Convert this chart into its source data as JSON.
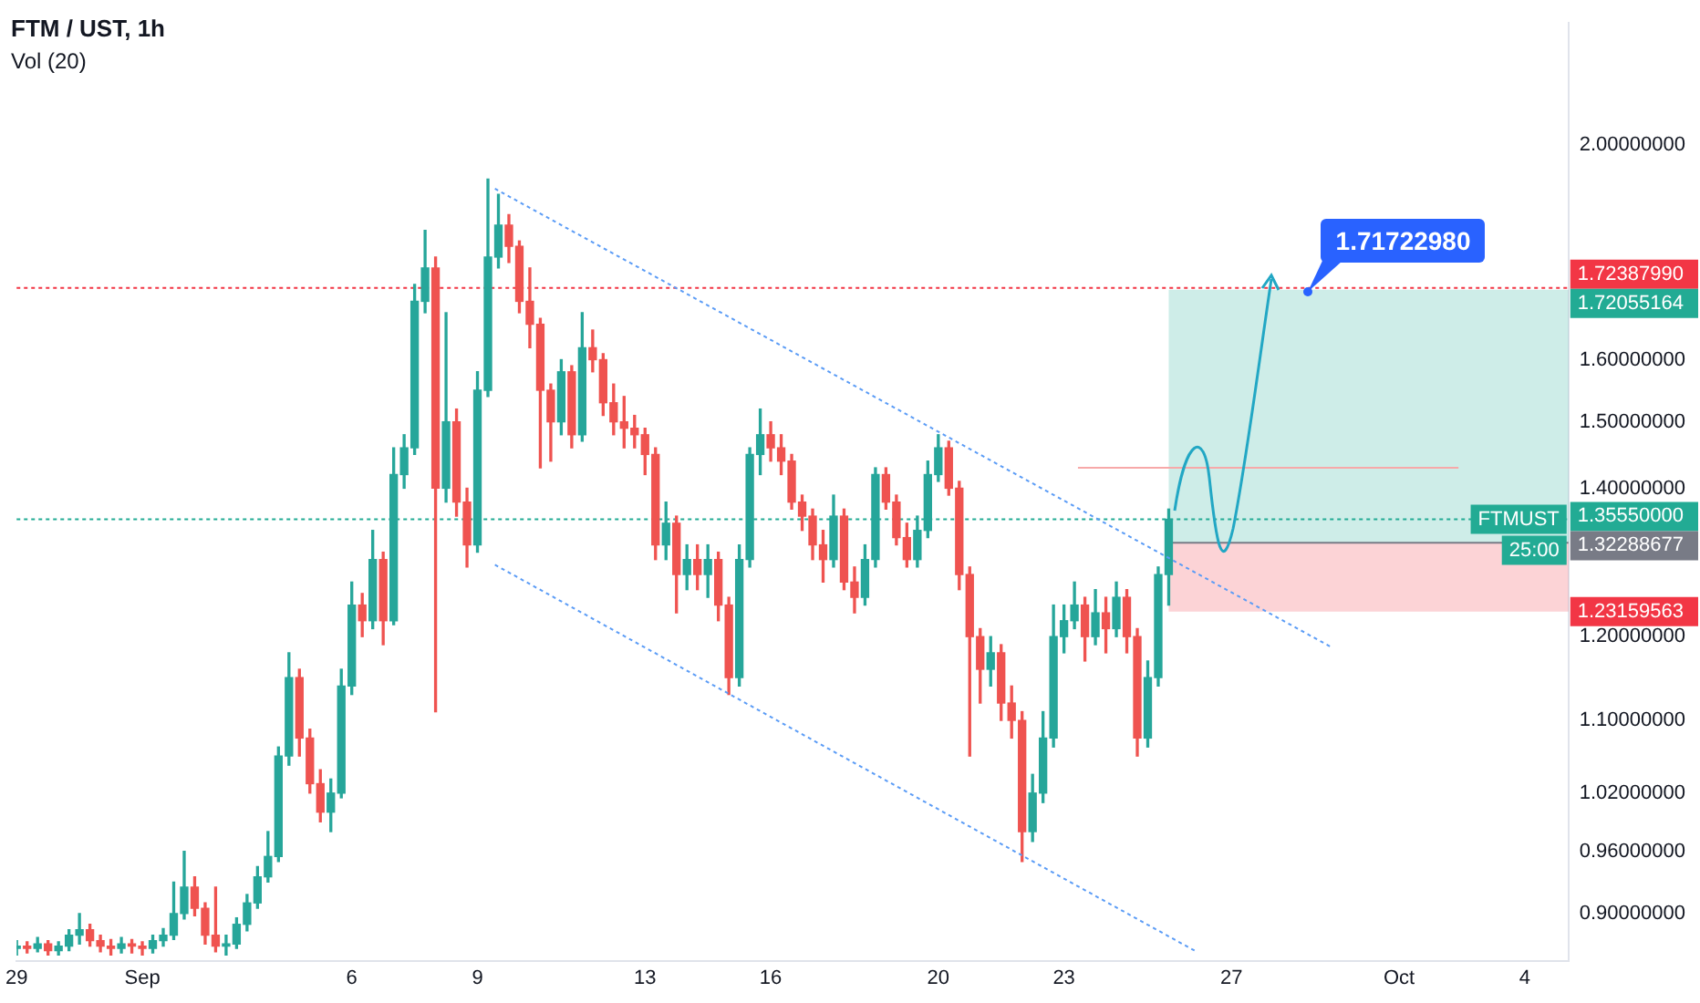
{
  "chart_data": {
    "type": "candlestick",
    "title": "FTM / UST, 1h",
    "colors": [
      "#26a69a",
      "#ef5350",
      "#26a69a",
      "#ef5350",
      "#26a69a",
      "#26a69a",
      "#26a69a",
      "#ef5350",
      "#ef5350",
      "#ef5350",
      "#26a69a",
      "#ef5350",
      "#ef5350",
      "#26a69a",
      "#26a69a",
      "#26a69a",
      "#26a69a",
      "#ef5350",
      "#ef5350",
      "#ef5350",
      "#26a69a",
      "#26a69a",
      "#26a69a",
      "#26a69a",
      "#26a69a",
      "#26a69a",
      "#26a69a",
      "#ef5350",
      "#ef5350",
      "#ef5350",
      "#26a69a",
      "#26a69a",
      "#26a69a",
      "#ef5350",
      "#26a69a",
      "#ef5350",
      "#26a69a",
      "#26a69a",
      "#26a69a",
      "#26a69a",
      "#ef5350",
      "#26a69a",
      "#ef5350",
      "#ef5350",
      "#26a69a",
      "#26a69a",
      "#26a69a",
      "#ef5350",
      "#ef5350",
      "#ef5350",
      "#ef5350",
      "#ef5350",
      "#26a69a",
      "#ef5350",
      "#26a69a",
      "#ef5350",
      "#ef5350",
      "#ef5350",
      "#ef5350",
      "#ef5350",
      "#ef5350",
      "#ef5350",
      "#26a69a",
      "#ef5350",
      "#26a69a",
      "#ef5350",
      "#26a69a",
      "#ef5350",
      "#ef5350",
      "#26a69a",
      "#26a69a",
      "#26a69a",
      "#ef5350",
      "#ef5350",
      "#ef5350",
      "#ef5350",
      "#ef5350",
      "#ef5350",
      "#26a69a",
      "#ef5350",
      "#ef5350",
      "#26a69a",
      "#26a69a",
      "#ef5350",
      "#ef5350",
      "#ef5350",
      "#26a69a",
      "#26a69a",
      "#26a69a",
      "#ef5350",
      "#ef5350",
      "#ef5350",
      "#ef5350",
      "#26a69a",
      "#ef5350",
      "#ef5350",
      "#ef5350",
      "#26a69a",
      "#26a69a",
      "#26a69a",
      "#26a69a",
      "#26a69a",
      "#ef5350",
      "#26a69a",
      "#ef5350",
      "#26a69a",
      "#ef5350",
      "#ef5350",
      "#26a69a",
      "#26a69a",
      "#26a69a"
    ],
    "x": [
      "--08-29T00:00",
      "--08-29T06:00",
      "--08-29T12:00",
      "--08-29T18:00",
      "--08-30T00:00",
      "--08-30T06:00",
      "--08-30T12:00",
      "--08-30T18:00",
      "--08-31T00:00",
      "--08-31T06:00",
      "--08-31T12:00",
      "--08-31T18:00",
      "--09-01T00:00",
      "--09-01T06:00",
      "--09-01T12:00",
      "--09-01T18:00",
      "--09-02T00:00",
      "--09-02T06:00",
      "--09-02T12:00",
      "--09-02T18:00",
      "--09-03T00:00",
      "--09-03T06:00",
      "--09-03T12:00",
      "--09-03T18:00",
      "--09-04T00:00",
      "--09-04T06:00",
      "--09-04T12:00",
      "--09-04T18:00",
      "--09-05T00:00",
      "--09-05T06:00",
      "--09-05T12:00",
      "--09-05T18:00",
      "--09-06T00:00",
      "--09-06T06:00",
      "--09-06T12:00",
      "--09-06T18:00",
      "--09-07T00:00",
      "--09-07T06:00",
      "--09-07T12:00",
      "--09-07T18:00",
      "--09-08T00:00",
      "--09-08T06:00",
      "--09-08T12:00",
      "--09-08T18:00",
      "--09-09T00:00",
      "--09-09T06:00",
      "--09-09T12:00",
      "--09-09T18:00",
      "--09-10T00:00",
      "--09-10T06:00",
      "--09-10T12:00",
      "--09-10T18:00",
      "--09-11T00:00",
      "--09-11T06:00",
      "--09-11T12:00",
      "--09-11T18:00",
      "--09-12T00:00",
      "--09-12T06:00",
      "--09-12T12:00",
      "--09-12T18:00",
      "--09-13T00:00",
      "--09-13T06:00",
      "--09-13T12:00",
      "--09-13T18:00",
      "--09-14T00:00",
      "--09-14T06:00",
      "--09-14T12:00",
      "--09-14T18:00",
      "--09-15T00:00",
      "--09-15T06:00",
      "--09-15T12:00",
      "--09-15T18:00",
      "--09-16T00:00",
      "--09-16T06:00",
      "--09-16T12:00",
      "--09-16T18:00",
      "--09-17T00:00",
      "--09-17T06:00",
      "--09-17T12:00",
      "--09-17T18:00",
      "--09-18T00:00",
      "--09-18T06:00",
      "--09-18T12:00",
      "--09-18T18:00",
      "--09-19T00:00",
      "--09-19T06:00",
      "--09-19T12:00",
      "--09-19T18:00",
      "--09-20T00:00",
      "--09-20T06:00",
      "--09-20T12:00",
      "--09-20T18:00",
      "--09-21T00:00",
      "--09-21T06:00",
      "--09-21T12:00",
      "--09-21T18:00",
      "--09-22T00:00",
      "--09-22T06:00",
      "--09-22T12:00",
      "--09-22T18:00",
      "--09-23T00:00",
      "--09-23T06:00",
      "--09-23T12:00",
      "--09-23T18:00",
      "--09-24T00:00",
      "--09-24T06:00",
      "--09-24T12:00",
      "--09-24T18:00",
      "--09-25T00:00",
      "--09-25T06:00",
      "--09-25T12:00"
    ],
    "ohlc": [
      [
        0.868,
        0.875,
        0.862,
        0.87
      ],
      [
        0.87,
        0.874,
        0.864,
        0.868
      ],
      [
        0.868,
        0.878,
        0.865,
        0.872
      ],
      [
        0.872,
        0.875,
        0.862,
        0.866
      ],
      [
        0.866,
        0.874,
        0.862,
        0.87
      ],
      [
        0.87,
        0.885,
        0.866,
        0.88
      ],
      [
        0.88,
        0.9,
        0.872,
        0.885
      ],
      [
        0.885,
        0.89,
        0.87,
        0.875
      ],
      [
        0.875,
        0.88,
        0.865,
        0.87
      ],
      [
        0.87,
        0.876,
        0.862,
        0.868
      ],
      [
        0.868,
        0.878,
        0.864,
        0.872
      ],
      [
        0.872,
        0.876,
        0.864,
        0.87
      ],
      [
        0.87,
        0.874,
        0.862,
        0.868
      ],
      [
        0.868,
        0.88,
        0.864,
        0.875
      ],
      [
        0.875,
        0.886,
        0.87,
        0.88
      ],
      [
        0.88,
        0.93,
        0.876,
        0.9
      ],
      [
        0.9,
        0.96,
        0.895,
        0.925
      ],
      [
        0.925,
        0.935,
        0.898,
        0.905
      ],
      [
        0.905,
        0.91,
        0.872,
        0.88
      ],
      [
        0.88,
        0.925,
        0.865,
        0.87
      ],
      [
        0.87,
        0.88,
        0.862,
        0.872
      ],
      [
        0.872,
        0.896,
        0.868,
        0.89
      ],
      [
        0.89,
        0.918,
        0.884,
        0.91
      ],
      [
        0.91,
        0.945,
        0.905,
        0.935
      ],
      [
        0.935,
        0.98,
        0.93,
        0.955
      ],
      [
        0.955,
        1.07,
        0.95,
        1.06
      ],
      [
        1.06,
        1.18,
        1.05,
        1.15
      ],
      [
        1.15,
        1.16,
        1.06,
        1.08
      ],
      [
        1.08,
        1.09,
        1.02,
        1.03
      ],
      [
        1.03,
        1.045,
        0.99,
        1.0
      ],
      [
        1.0,
        1.035,
        0.98,
        1.02
      ],
      [
        1.02,
        1.16,
        1.015,
        1.14
      ],
      [
        1.14,
        1.27,
        1.13,
        1.24
      ],
      [
        1.24,
        1.255,
        1.2,
        1.22
      ],
      [
        1.22,
        1.34,
        1.21,
        1.3
      ],
      [
        1.3,
        1.31,
        1.19,
        1.22
      ],
      [
        1.22,
        1.46,
        1.215,
        1.42
      ],
      [
        1.42,
        1.48,
        1.4,
        1.46
      ],
      [
        1.46,
        1.73,
        1.45,
        1.7
      ],
      [
        1.7,
        1.83,
        1.68,
        1.76
      ],
      [
        1.76,
        1.78,
        1.11,
        1.4
      ],
      [
        1.4,
        1.68,
        1.38,
        1.5
      ],
      [
        1.5,
        1.52,
        1.36,
        1.38
      ],
      [
        1.38,
        1.4,
        1.29,
        1.32
      ],
      [
        1.32,
        1.58,
        1.31,
        1.55
      ],
      [
        1.55,
        1.93,
        1.54,
        1.78
      ],
      [
        1.78,
        1.9,
        1.76,
        1.84
      ],
      [
        1.84,
        1.86,
        1.77,
        1.8
      ],
      [
        1.8,
        1.81,
        1.68,
        1.7
      ],
      [
        1.7,
        1.76,
        1.62,
        1.66
      ],
      [
        1.66,
        1.67,
        1.43,
        1.55
      ],
      [
        1.55,
        1.56,
        1.44,
        1.5
      ],
      [
        1.5,
        1.6,
        1.48,
        1.58
      ],
      [
        1.58,
        1.59,
        1.46,
        1.48
      ],
      [
        1.48,
        1.68,
        1.47,
        1.62
      ],
      [
        1.62,
        1.65,
        1.58,
        1.6
      ],
      [
        1.6,
        1.61,
        1.51,
        1.53
      ],
      [
        1.53,
        1.56,
        1.48,
        1.5
      ],
      [
        1.5,
        1.54,
        1.46,
        1.49
      ],
      [
        1.49,
        1.51,
        1.46,
        1.48
      ],
      [
        1.48,
        1.49,
        1.42,
        1.45
      ],
      [
        1.45,
        1.46,
        1.3,
        1.32
      ],
      [
        1.32,
        1.38,
        1.3,
        1.35
      ],
      [
        1.35,
        1.36,
        1.23,
        1.28
      ],
      [
        1.28,
        1.32,
        1.26,
        1.3
      ],
      [
        1.3,
        1.32,
        1.26,
        1.28
      ],
      [
        1.28,
        1.32,
        1.25,
        1.3
      ],
      [
        1.3,
        1.31,
        1.22,
        1.24
      ],
      [
        1.24,
        1.25,
        1.13,
        1.15
      ],
      [
        1.15,
        1.32,
        1.14,
        1.3
      ],
      [
        1.3,
        1.46,
        1.29,
        1.45
      ],
      [
        1.45,
        1.52,
        1.42,
        1.48
      ],
      [
        1.48,
        1.5,
        1.44,
        1.46
      ],
      [
        1.46,
        1.48,
        1.42,
        1.44
      ],
      [
        1.44,
        1.45,
        1.37,
        1.38
      ],
      [
        1.38,
        1.39,
        1.34,
        1.36
      ],
      [
        1.36,
        1.37,
        1.3,
        1.32
      ],
      [
        1.32,
        1.34,
        1.27,
        1.3
      ],
      [
        1.3,
        1.39,
        1.29,
        1.36
      ],
      [
        1.36,
        1.37,
        1.26,
        1.27
      ],
      [
        1.27,
        1.29,
        1.23,
        1.25
      ],
      [
        1.25,
        1.32,
        1.24,
        1.3
      ],
      [
        1.3,
        1.43,
        1.29,
        1.42
      ],
      [
        1.42,
        1.43,
        1.37,
        1.38
      ],
      [
        1.38,
        1.39,
        1.32,
        1.33
      ],
      [
        1.33,
        1.35,
        1.29,
        1.3
      ],
      [
        1.3,
        1.36,
        1.29,
        1.34
      ],
      [
        1.34,
        1.44,
        1.33,
        1.42
      ],
      [
        1.42,
        1.48,
        1.41,
        1.46
      ],
      [
        1.46,
        1.47,
        1.39,
        1.4
      ],
      [
        1.4,
        1.41,
        1.26,
        1.28
      ],
      [
        1.28,
        1.29,
        1.06,
        1.2
      ],
      [
        1.2,
        1.21,
        1.12,
        1.16
      ],
      [
        1.16,
        1.2,
        1.14,
        1.18
      ],
      [
        1.18,
        1.19,
        1.1,
        1.12
      ],
      [
        1.12,
        1.14,
        1.08,
        1.1
      ],
      [
        1.1,
        1.11,
        0.95,
        0.98
      ],
      [
        0.98,
        1.04,
        0.97,
        1.02
      ],
      [
        1.02,
        1.11,
        1.01,
        1.08
      ],
      [
        1.08,
        1.24,
        1.07,
        1.2
      ],
      [
        1.2,
        1.24,
        1.18,
        1.22
      ],
      [
        1.22,
        1.27,
        1.21,
        1.24
      ],
      [
        1.24,
        1.25,
        1.17,
        1.2
      ],
      [
        1.2,
        1.26,
        1.19,
        1.23
      ],
      [
        1.23,
        1.25,
        1.18,
        1.21
      ],
      [
        1.21,
        1.27,
        1.2,
        1.25
      ],
      [
        1.25,
        1.26,
        1.18,
        1.2
      ],
      [
        1.2,
        1.21,
        1.06,
        1.08
      ],
      [
        1.08,
        1.17,
        1.07,
        1.15
      ],
      [
        1.15,
        1.29,
        1.14,
        1.28
      ],
      [
        1.28,
        1.37,
        1.24,
        1.3555
      ]
    ],
    "series": [
      {
        "type": "line",
        "color": "#5b9cf6",
        "line_style": "dotted",
        "x": [
          "--09-09T10:00",
          "--09-29T10:00"
        ],
        "values": [
          1.911,
          1.186
        ]
      },
      {
        "type": "line",
        "color": "#5b9cf6",
        "line_style": "dotted",
        "x": [
          "--09-09T10:00",
          "--09-26T04:00"
        ],
        "values": [
          1.293,
          0.865
        ]
      },
      {
        "type": "line",
        "color": "#f7a9a9",
        "line_style": "solid",
        "x": [
          "--09-23T08:00",
          "--10-02T10:00"
        ],
        "values": [
          1.43,
          1.43
        ]
      }
    ],
    "ref_lines": [
      {
        "axis": "y",
        "value": 1.7238799,
        "label": "1.72387990",
        "color": "#f23645",
        "line_style": "dotted"
      },
      {
        "axis": "y",
        "value": 1.3555,
        "label": "1.35550000",
        "color": "#22ab94",
        "line_style": "dotted"
      },
      {
        "axis": "y",
        "value": 1.32288677,
        "label": "1.32288677",
        "color": "#787b86",
        "line_style": "solid"
      }
    ],
    "bands": [
      {
        "axis": "y",
        "from": 1.32288677,
        "to": 1.72055164,
        "label": "1.72055164",
        "color": "#22ab94"
      },
      {
        "axis": "y",
        "from": 1.23159563,
        "to": 1.32288677,
        "label": "1.23159563",
        "color": "#f23645"
      }
    ],
    "annotations": [
      "Vol (20)",
      {
        "text": "1.71722980",
        "x": "--09-28T20:00",
        "y": 1.7172298
      },
      {
        "text": "FTMUST",
        "y": 1.3555
      },
      "25:00"
    ],
    "log": "y",
    "grid": false,
    "legend": false,
    "xlim": [
      "--08-29",
      "--10-05T01:00"
    ],
    "xticks": [
      {
        "value": "--08-29",
        "label": "29"
      },
      {
        "value": "--09-01",
        "label": "Sep"
      },
      {
        "value": "--09-06",
        "label": "6"
      },
      {
        "value": "--09-09",
        "label": "9"
      },
      {
        "value": "--09-13",
        "label": "13"
      },
      {
        "value": "--09-16",
        "label": "16"
      },
      {
        "value": "--09-20",
        "label": "20"
      },
      {
        "value": "--09-23",
        "label": "23"
      },
      {
        "value": "--09-27",
        "label": "27"
      },
      {
        "value": "--10-01",
        "label": "Oct"
      },
      {
        "value": "--10-04",
        "label": "4"
      }
    ],
    "ylim": [
      0.857,
      2.27
    ],
    "yticks": [
      {
        "value": 0.9,
        "label": "0.90000000"
      },
      {
        "value": 0.96,
        "label": "0.96000000"
      },
      {
        "value": 1.02,
        "label": "1.02000000"
      },
      {
        "value": 1.1,
        "label": "1.10000000"
      },
      {
        "value": 1.2,
        "label": "1.20000000"
      },
      {
        "value": 1.4,
        "label": "1.40000000"
      },
      {
        "value": 1.5,
        "label": "1.50000000"
      },
      {
        "value": 1.6,
        "label": "1.60000000"
      },
      {
        "value": 2.0,
        "label": "2.00000000"
      }
    ]
  }
}
